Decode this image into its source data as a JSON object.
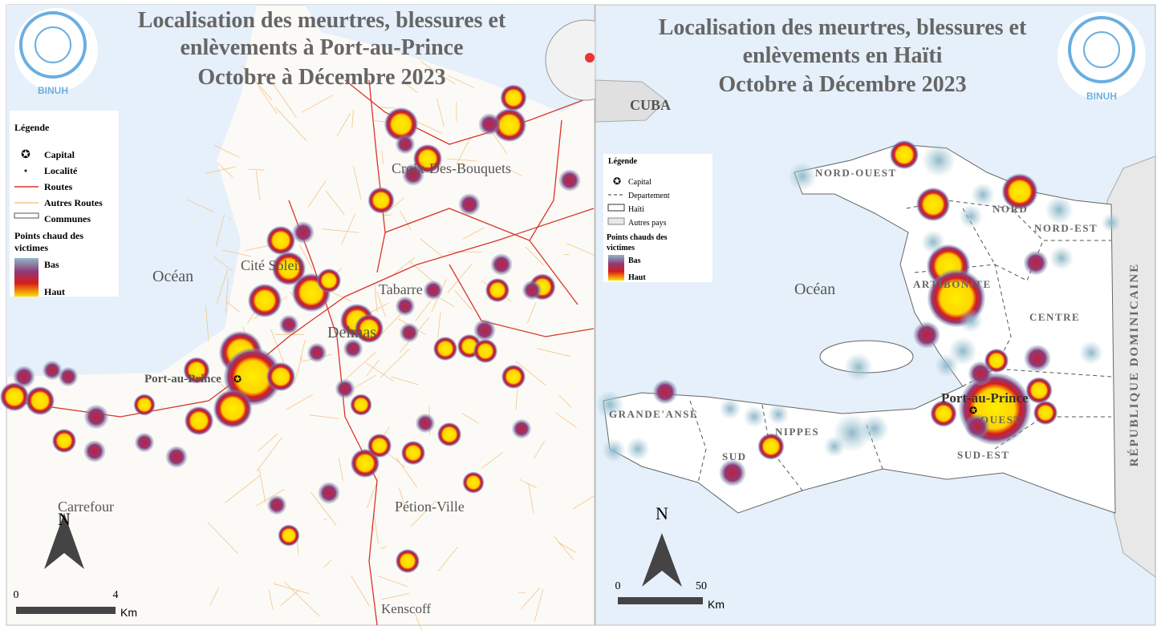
{
  "left_map": {
    "title": [
      "Localisation des meurtres, blessures et",
      "enlèvements à Port-au-Prince",
      "Octobre à Décembre 2023"
    ],
    "logo_label": "BINUH",
    "legend": {
      "title": "Légende",
      "items": [
        "Capital",
        "Localité",
        "Routes",
        "Autres Routes",
        "Communes"
      ],
      "heat_title": [
        "Points chaud des",
        "victimes"
      ],
      "low": "Bas",
      "high": "Haut"
    },
    "places": [
      "Océan",
      "Cité Soleil",
      "Port-au-Prince",
      "Delmas",
      "Tabarre",
      "Croix-Des-Bouquets",
      "Pétion-Ville",
      "Carrefour",
      "Kenscoff"
    ],
    "north": "N",
    "scale": {
      "start": "0",
      "end": "4",
      "unit": "Km"
    }
  },
  "right_map": {
    "title": [
      "Localisation des meurtres, blessures et",
      "enlèvements en Haïti",
      "Octobre à Décembre 2023"
    ],
    "logo_label": "BINUH",
    "legend": {
      "title": "Légende",
      "items": [
        "Capital",
        "Departement",
        "Haïti",
        "Autres pays"
      ],
      "heat_title": [
        "Points chauds des",
        "victimes"
      ],
      "low": "Bas",
      "high": "Haut"
    },
    "places": [
      "CUBA",
      "NORD-OUEST",
      "NORD",
      "NORD-EST",
      "ARTIBONITE",
      "Océan",
      "CENTRE",
      "GRANDE'ANSE",
      "NIPPES",
      "OUEST",
      "SUD",
      "SUD-EST",
      "Port-au-Prince",
      "RÉPUBLIQUE DOMINICAINE"
    ],
    "north": "N",
    "scale": {
      "start": "0",
      "end": "50",
      "unit": "Km"
    }
  }
}
